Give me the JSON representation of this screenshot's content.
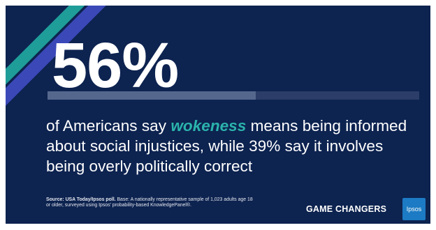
{
  "stat": {
    "value": "56%",
    "percent": 56
  },
  "headline": {
    "before": "of Americans say ",
    "emphasis": "wokeness",
    "after": " means being informed about social injustices, while 39% say it involves being overly politically correct"
  },
  "source": {
    "label": "Source: USA Today/Ipsos poll.",
    "text": " Base: A nationally representative sample of 1,023 adults age 18 or older, surveyed using Ipsos' probability-based KnowledgePanel®."
  },
  "brand": {
    "tagline": "GAME CHANGERS",
    "logo": "Ipsos"
  },
  "colors": {
    "background": "#0d2350",
    "accent": "#2bb3ac",
    "stripe_blue": "#3a48b8",
    "logo_blue": "#1c7bc4"
  }
}
